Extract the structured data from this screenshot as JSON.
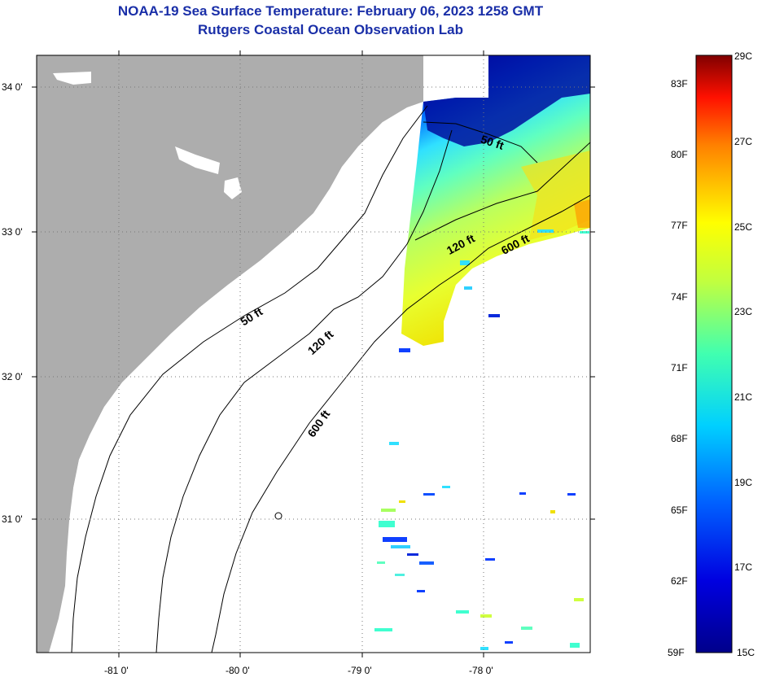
{
  "header": {
    "title_line1": "NOAA-19 Sea Surface Temperature:  February 06, 2023 1258 GMT",
    "title_line2": "Rutgers Coastal Ocean Observation Lab"
  },
  "map": {
    "lat_ticks": [
      "34 0'",
      "33 0'",
      "32 0'",
      "31 0'"
    ],
    "lon_ticks": [
      "-81 0'",
      "-80 0'",
      "-79 0'",
      "-78 0'"
    ],
    "contour_labels": {
      "near_50": "50 ft",
      "near_120": "120 ft",
      "near_600": "600 ft",
      "off_50": "50 ft",
      "off_120": "120 ft",
      "off_600": "600 ft"
    },
    "colors": {
      "land": "#adadad",
      "water_nodata": "#ffffff",
      "cold": "#00008b",
      "warm": "#f0e000"
    }
  },
  "colorbar": {
    "celsius_labels": [
      "29C",
      "27C",
      "25C",
      "23C",
      "21C",
      "19C",
      "17C",
      "15C"
    ],
    "fahrenheit_labels": [
      "83F",
      "80F",
      "77F",
      "74F",
      "71F",
      "68F",
      "65F",
      "62F",
      "59F"
    ],
    "range_celsius": [
      15,
      29
    ]
  }
}
